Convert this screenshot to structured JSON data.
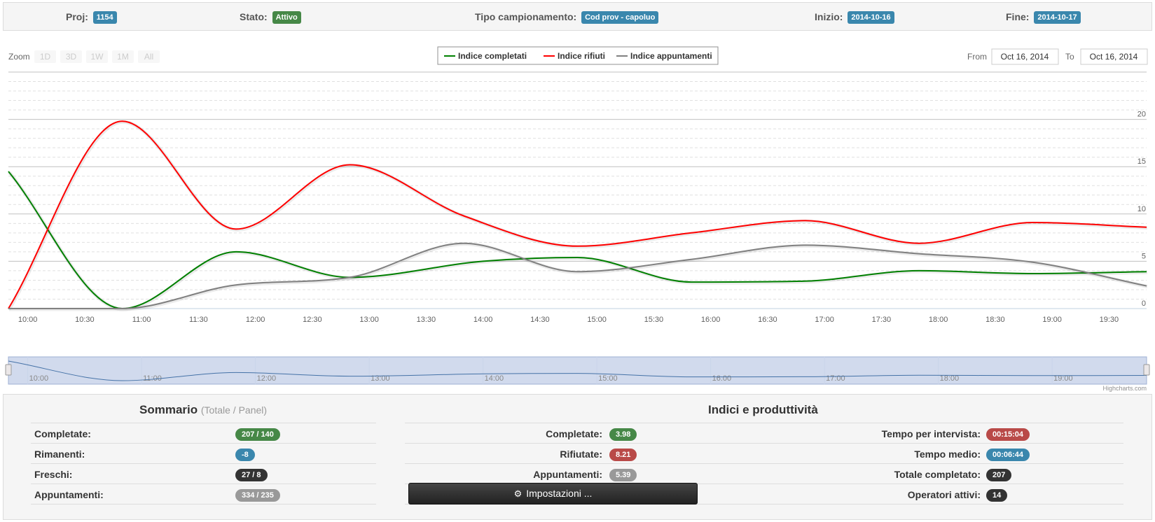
{
  "header": {
    "proj_label": "Proj:",
    "proj_value": "1154",
    "stato_label": "Stato:",
    "stato_value": "Attivo",
    "tipo_label": "Tipo campionamento:",
    "tipo_value": "Cod prov - capoluo",
    "inizio_label": "Inizio:",
    "inizio_value": "2014-10-16",
    "fine_label": "Fine:",
    "fine_value": "2014-10-17"
  },
  "zoom": {
    "label": "Zoom",
    "buttons": [
      "1D",
      "3D",
      "1W",
      "1M",
      "All"
    ]
  },
  "range": {
    "from_label": "From",
    "from_value": "Oct 16, 2014",
    "to_label": "To",
    "to_value": "Oct 16, 2014"
  },
  "credits": "Highcharts.com",
  "colors": {
    "green": "#008000",
    "red": "#ff0000",
    "gray": "#808080",
    "navigator": "#4572a7"
  },
  "chart_data": {
    "type": "line",
    "title": "",
    "xlabel": "",
    "ylabel": "",
    "x_ticks": [
      "10:00",
      "10:30",
      "11:00",
      "11:30",
      "12:00",
      "12:30",
      "13:00",
      "13:30",
      "14:00",
      "14:30",
      "15:00",
      "15:30",
      "16:00",
      "16:30",
      "17:00",
      "17:30",
      "18:00",
      "18:30",
      "19:00",
      "19:30"
    ],
    "y_ticks": [
      0,
      5,
      10,
      15,
      20
    ],
    "ylim": [
      0,
      25
    ],
    "x_range_hours": [
      9.83,
      19.83
    ],
    "legend_position": "top-center",
    "navigator_ticks": [
      "10:00",
      "11:00",
      "12:00",
      "13:00",
      "14:00",
      "15:00",
      "16:00",
      "17:00",
      "18:00",
      "19:00"
    ],
    "series": [
      {
        "name": "Indice completati",
        "color": "#008000",
        "x": [
          9.83,
          10.83,
          11.83,
          12.83,
          14.0,
          14.83,
          15.83,
          16.83,
          17.83,
          18.83,
          19.83
        ],
        "values": [
          14.5,
          0.0,
          6.0,
          3.3,
          5.0,
          5.4,
          2.8,
          2.9,
          4.0,
          3.7,
          3.9
        ]
      },
      {
        "name": "Indice rifiuti",
        "color": "#ff0000",
        "x": [
          9.83,
          10.83,
          11.83,
          12.83,
          13.83,
          14.83,
          15.83,
          16.83,
          17.83,
          18.83,
          19.83
        ],
        "values": [
          0.0,
          19.8,
          8.4,
          15.2,
          9.8,
          6.6,
          8.0,
          9.3,
          6.9,
          9.1,
          8.6
        ]
      },
      {
        "name": "Indice appuntamenti",
        "color": "#808080",
        "x": [
          9.83,
          10.83,
          11.83,
          12.83,
          13.83,
          14.83,
          15.83,
          16.83,
          17.83,
          18.83,
          19.83
        ],
        "values": [
          0.0,
          0.0,
          2.5,
          3.3,
          6.9,
          3.9,
          5.2,
          6.7,
          5.8,
          4.9,
          2.4
        ]
      }
    ]
  },
  "summary": {
    "title": "Sommario",
    "subtitle": "(Totale / Panel)",
    "rows": [
      {
        "label": "Completate:",
        "value": "207 / 140",
        "color": "green"
      },
      {
        "label": "Rimanenti:",
        "value": "-8",
        "color": "blue"
      },
      {
        "label": "Freschi:",
        "value": "27 / 8",
        "color": "black"
      },
      {
        "label": "Appuntamenti:",
        "value": "334 / 235",
        "color": "gray"
      }
    ]
  },
  "indici": {
    "title": "Indici e produttività",
    "left_rows": [
      {
        "label": "Completate:",
        "value": "3.98",
        "color": "green"
      },
      {
        "label": "Rifiutate:",
        "value": "8.21",
        "color": "red"
      },
      {
        "label": "Appuntamenti:",
        "value": "5.39",
        "color": "gray"
      }
    ],
    "right_rows": [
      {
        "label": "Tempo per intervista:",
        "value": "00:15:04",
        "color": "red"
      },
      {
        "label": "Tempo medio:",
        "value": "00:06:44",
        "color": "blue"
      },
      {
        "label": "Totale completato:",
        "value": "207",
        "color": "black"
      },
      {
        "label": "Operatori attivi:",
        "value": "14",
        "color": "black"
      }
    ],
    "settings_button": "Impostazioni ..."
  }
}
